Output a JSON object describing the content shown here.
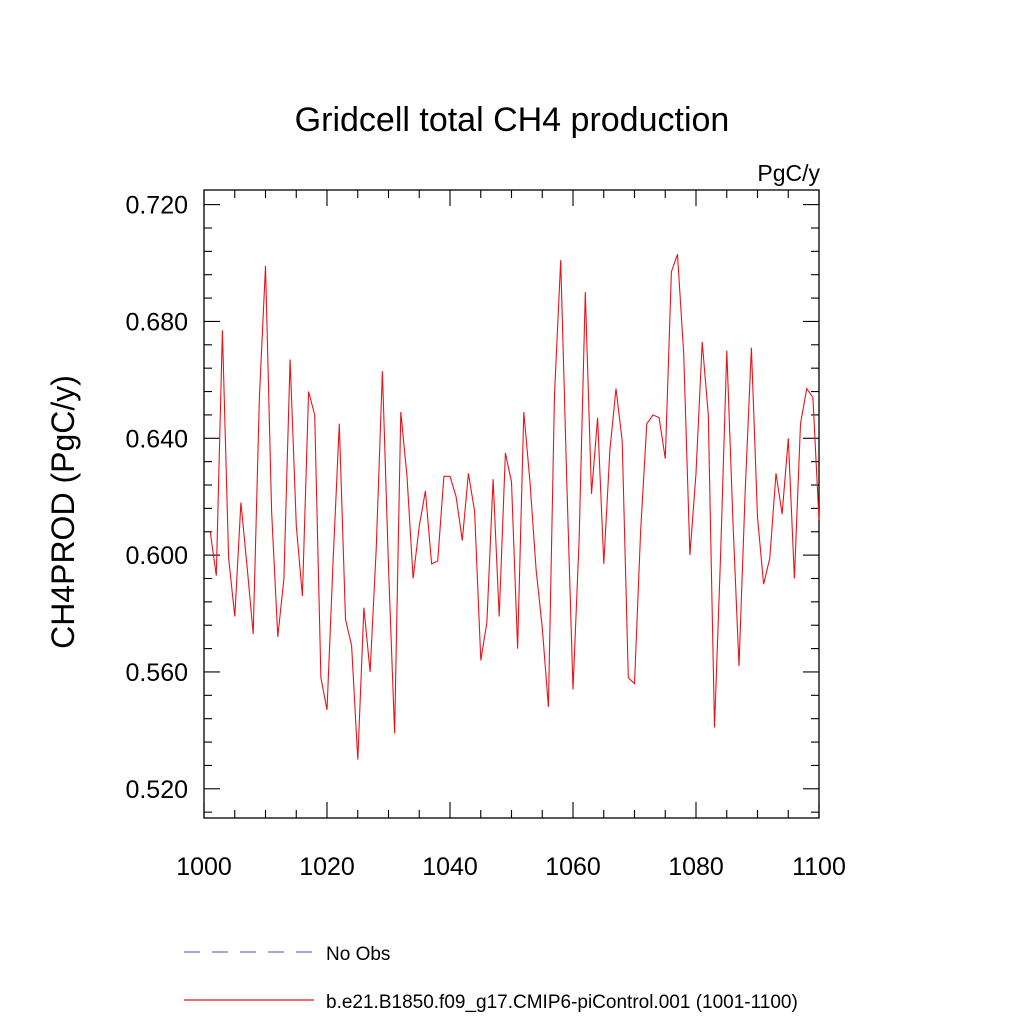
{
  "chart_data": {
    "type": "line",
    "title": "Gridcell total CH4 production",
    "units_label": "PgC/y",
    "ylabel": "CH4PROD  (PgC/y)",
    "xlabel": "",
    "xlim": [
      1000,
      1100
    ],
    "ylim": [
      0.51,
      0.725
    ],
    "x_ticks": [
      1000,
      1020,
      1040,
      1060,
      1080,
      1100
    ],
    "x_tick_labels": [
      "1000",
      "1020",
      "1040",
      "1060",
      "1080",
      "1100"
    ],
    "y_ticks": [
      0.52,
      0.56,
      0.6,
      0.64,
      0.68,
      0.72
    ],
    "y_tick_labels": [
      "0.520",
      "0.560",
      "0.600",
      "0.640",
      "0.680",
      "0.720"
    ],
    "grid": false,
    "legend": [
      {
        "label": "No Obs",
        "style": "dashed",
        "color": "#7b72c8"
      },
      {
        "label": "b.e21.B1850.f09_g17.CMIP6-piControl.001 (1001-1100)",
        "style": "solid",
        "color": "#e8141c"
      }
    ],
    "series": [
      {
        "name": "b.e21.B1850.f09_g17.CMIP6-piControl.001 (1001-1100)",
        "color": "#e8141c",
        "x": [
          1001,
          1002,
          1003,
          1004,
          1005,
          1006,
          1007,
          1008,
          1009,
          1010,
          1011,
          1012,
          1013,
          1014,
          1015,
          1016,
          1017,
          1018,
          1019,
          1020,
          1021,
          1022,
          1023,
          1024,
          1025,
          1026,
          1027,
          1028,
          1029,
          1030,
          1031,
          1032,
          1033,
          1034,
          1035,
          1036,
          1037,
          1038,
          1039,
          1040,
          1041,
          1042,
          1043,
          1044,
          1045,
          1046,
          1047,
          1048,
          1049,
          1050,
          1051,
          1052,
          1053,
          1054,
          1055,
          1056,
          1057,
          1058,
          1059,
          1060,
          1061,
          1062,
          1063,
          1064,
          1065,
          1066,
          1067,
          1068,
          1069,
          1070,
          1071,
          1072,
          1073,
          1074,
          1075,
          1076,
          1077,
          1078,
          1079,
          1080,
          1081,
          1082,
          1083,
          1084,
          1085,
          1086,
          1087,
          1088,
          1089,
          1090,
          1091,
          1092,
          1093,
          1094,
          1095,
          1096,
          1097,
          1098,
          1099,
          1100
        ],
        "values": [
          0.608,
          0.593,
          0.677,
          0.599,
          0.579,
          0.618,
          0.596,
          0.573,
          0.654,
          0.699,
          0.615,
          0.572,
          0.592,
          0.667,
          0.61,
          0.586,
          0.656,
          0.648,
          0.558,
          0.547,
          0.598,
          0.645,
          0.578,
          0.569,
          0.53,
          0.582,
          0.56,
          0.602,
          0.663,
          0.596,
          0.539,
          0.649,
          0.627,
          0.592,
          0.61,
          0.622,
          0.597,
          0.598,
          0.627,
          0.627,
          0.62,
          0.605,
          0.628,
          0.615,
          0.564,
          0.577,
          0.626,
          0.579,
          0.635,
          0.625,
          0.568,
          0.649,
          0.625,
          0.595,
          0.575,
          0.548,
          0.655,
          0.701,
          0.625,
          0.554,
          0.605,
          0.69,
          0.621,
          0.647,
          0.597,
          0.636,
          0.657,
          0.639,
          0.558,
          0.556,
          0.608,
          0.645,
          0.648,
          0.647,
          0.633,
          0.697,
          0.703,
          0.669,
          0.6,
          0.628,
          0.673,
          0.648,
          0.541,
          0.6,
          0.67,
          0.612,
          0.562,
          0.622,
          0.671,
          0.613,
          0.59,
          0.599,
          0.628,
          0.614,
          0.64,
          0.592,
          0.645,
          0.657,
          0.654,
          0.612
        ]
      }
    ]
  }
}
